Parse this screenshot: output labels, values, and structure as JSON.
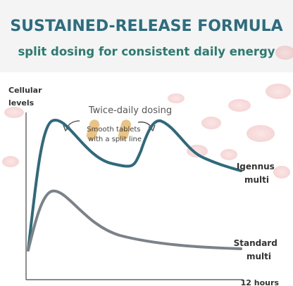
{
  "header": {
    "title": "SUSTAINED-RELEASE FORMULA",
    "subtitle": "split dosing for consistent daily energy"
  },
  "graph": {
    "y_label": [
      "Cellular",
      "levels"
    ],
    "x_label": "12 hours",
    "dosing_label": "Twice-daily dosing",
    "tablet_note": [
      "Smooth tablets",
      "with a split line"
    ],
    "curves": [
      {
        "label": [
          "Igennus",
          "multi"
        ]
      },
      {
        "label": [
          "Standard",
          "multi"
        ]
      }
    ]
  }
}
